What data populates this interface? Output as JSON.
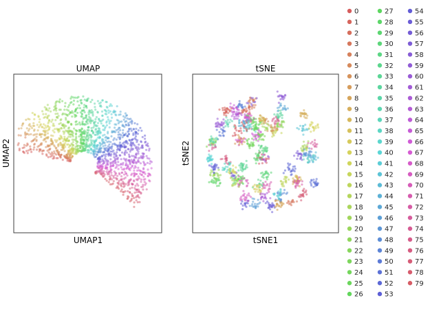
{
  "chart_data": [
    {
      "type": "scatter",
      "title": "UMAP",
      "xlabel": "UMAP1",
      "ylabel": "UMAP2",
      "grid": false,
      "ticks": false,
      "legend": "right",
      "n_clusters": 80
    },
    {
      "type": "scatter",
      "title": "tSNE",
      "xlabel": "tSNE1",
      "ylabel": "tSNE2",
      "grid": false,
      "ticks": false,
      "legend": "right",
      "n_clusters": 80
    }
  ],
  "legend": {
    "labels": [
      "0",
      "1",
      "2",
      "3",
      "4",
      "5",
      "6",
      "7",
      "8",
      "9",
      "10",
      "11",
      "12",
      "13",
      "14",
      "15",
      "16",
      "17",
      "18",
      "19",
      "20",
      "21",
      "22",
      "23",
      "24",
      "25",
      "26",
      "27",
      "28",
      "29",
      "30",
      "31",
      "32",
      "33",
      "34",
      "35",
      "36",
      "37",
      "38",
      "39",
      "40",
      "41",
      "42",
      "43",
      "44",
      "45",
      "46",
      "47",
      "48",
      "49",
      "50",
      "51",
      "52",
      "53",
      "54",
      "55",
      "56",
      "57",
      "58",
      "59",
      "60",
      "61",
      "62",
      "63",
      "64",
      "65",
      "66",
      "67",
      "68",
      "69",
      "70",
      "71",
      "72",
      "73",
      "74",
      "75",
      "76",
      "77",
      "78",
      "79"
    ],
    "palette": "hls"
  }
}
